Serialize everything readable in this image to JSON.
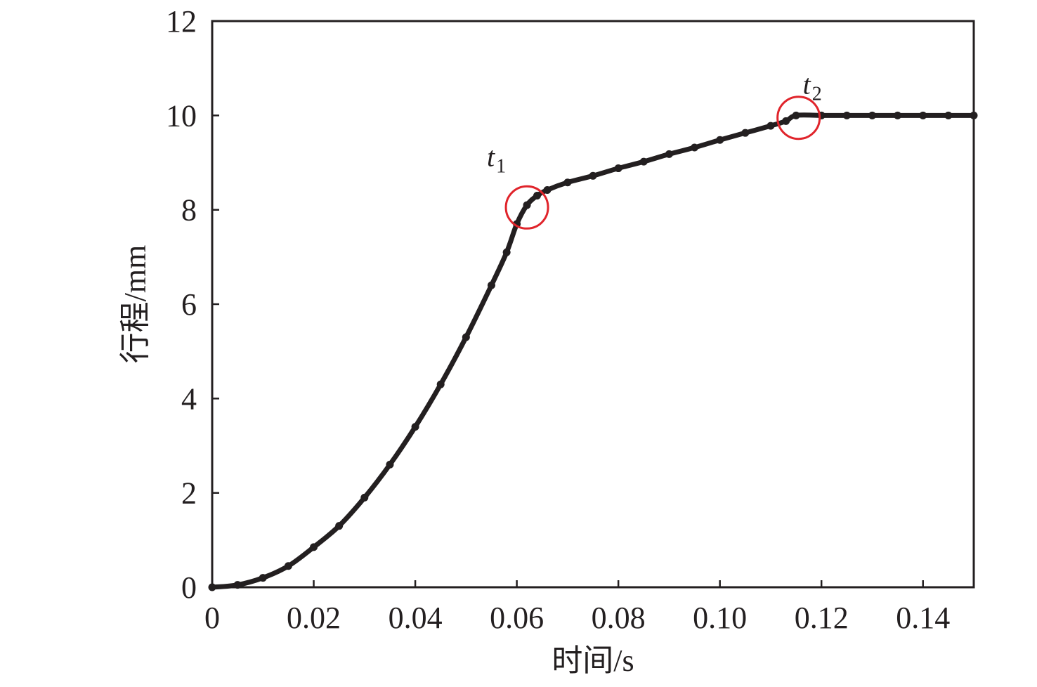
{
  "chart_data": {
    "type": "line",
    "title": "",
    "xlabel": "时间/s",
    "ylabel": "行程/mm",
    "xlim": [
      0,
      0.15
    ],
    "ylim": [
      0,
      12
    ],
    "x_ticks": [
      0,
      0.02,
      0.04,
      0.06,
      0.08,
      0.1,
      0.12,
      0.14
    ],
    "x_tick_labels": [
      "0",
      "0.02",
      "0.04",
      "0.06",
      "0.08",
      "0.10",
      "0.12",
      "0.14"
    ],
    "y_ticks": [
      0,
      2,
      4,
      6,
      8,
      10,
      12
    ],
    "y_tick_labels": [
      "0",
      "2",
      "4",
      "6",
      "8",
      "10",
      "12"
    ],
    "grid": false,
    "legend": "none",
    "series": [
      {
        "color": "#231f20",
        "x": [
          0,
          0.005,
          0.01,
          0.015,
          0.02,
          0.025,
          0.03,
          0.035,
          0.04,
          0.045,
          0.05,
          0.055,
          0.058,
          0.06,
          0.062,
          0.064,
          0.066,
          0.07,
          0.075,
          0.08,
          0.085,
          0.09,
          0.095,
          0.1,
          0.105,
          0.11,
          0.113,
          0.115,
          0.12,
          0.125,
          0.13,
          0.135,
          0.14,
          0.145,
          0.15
        ],
        "y": [
          0,
          0.05,
          0.2,
          0.45,
          0.85,
          1.3,
          1.9,
          2.6,
          3.4,
          4.3,
          5.3,
          6.4,
          7.1,
          7.7,
          8.1,
          8.3,
          8.42,
          8.58,
          8.72,
          8.88,
          9.02,
          9.18,
          9.32,
          9.48,
          9.63,
          9.78,
          9.88,
          10.0,
          10.0,
          10.0,
          10.0,
          10.0,
          10.0,
          10.0,
          10.0
        ]
      }
    ],
    "annotations": [
      {
        "label": "t",
        "subscript": "1",
        "x": 0.062,
        "y": 8.05,
        "marker": "circle",
        "marker_color": "#e0242b"
      },
      {
        "label": "t",
        "subscript": "2",
        "x": 0.1155,
        "y": 9.95,
        "marker": "circle",
        "marker_color": "#e0242b"
      }
    ]
  }
}
